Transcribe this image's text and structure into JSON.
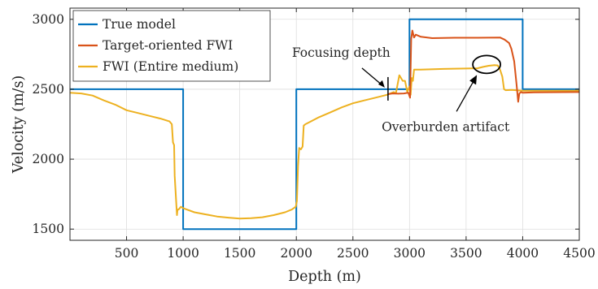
{
  "chart_data": {
    "type": "line",
    "xlabel": "Depth (m)",
    "ylabel": "Velocity (m/s)",
    "xlim": [
      0,
      4500
    ],
    "ylim": [
      1420,
      3080
    ],
    "grid": true,
    "legend_position": "top-left",
    "x_ticks": [
      500,
      1000,
      1500,
      2000,
      2500,
      3000,
      3500,
      4000,
      4500
    ],
    "y_ticks": [
      1500,
      2000,
      2500,
      3000
    ],
    "series": [
      {
        "name": "True model",
        "color": "#0072BD",
        "points": [
          [
            0,
            2500
          ],
          [
            1000,
            2500
          ],
          [
            1000,
            1500
          ],
          [
            2000,
            1500
          ],
          [
            2000,
            2500
          ],
          [
            3000,
            2500
          ],
          [
            3000,
            3000
          ],
          [
            4000,
            3000
          ],
          [
            4000,
            2500
          ],
          [
            4500,
            2500
          ]
        ]
      },
      {
        "name": "Target-oriented FWI",
        "color": "#D95319",
        "points": [
          [
            2810,
            2465
          ],
          [
            2850,
            2470
          ],
          [
            2900,
            2468
          ],
          [
            2950,
            2470
          ],
          [
            2990,
            2475
          ],
          [
            3005,
            2440
          ],
          [
            3015,
            2860
          ],
          [
            3025,
            2920
          ],
          [
            3040,
            2870
          ],
          [
            3055,
            2890
          ],
          [
            3100,
            2875
          ],
          [
            3200,
            2865
          ],
          [
            3400,
            2868
          ],
          [
            3600,
            2868
          ],
          [
            3800,
            2870
          ],
          [
            3840,
            2855
          ],
          [
            3880,
            2830
          ],
          [
            3900,
            2790
          ],
          [
            3925,
            2700
          ],
          [
            3945,
            2540
          ],
          [
            3960,
            2410
          ],
          [
            3970,
            2470
          ],
          [
            3985,
            2480
          ],
          [
            4000,
            2475
          ],
          [
            4100,
            2478
          ],
          [
            4500,
            2480
          ]
        ]
      },
      {
        "name": "FWI (Entire medium)",
        "color": "#EDB120",
        "points": [
          [
            0,
            2475
          ],
          [
            100,
            2470
          ],
          [
            200,
            2455
          ],
          [
            300,
            2420
          ],
          [
            400,
            2390
          ],
          [
            500,
            2350
          ],
          [
            600,
            2330
          ],
          [
            700,
            2310
          ],
          [
            800,
            2290
          ],
          [
            880,
            2270
          ],
          [
            900,
            2250
          ],
          [
            910,
            2120
          ],
          [
            920,
            2100
          ],
          [
            925,
            1880
          ],
          [
            940,
            1670
          ],
          [
            945,
            1600
          ],
          [
            950,
            1640
          ],
          [
            960,
            1640
          ],
          [
            980,
            1660
          ],
          [
            1000,
            1650
          ],
          [
            1100,
            1620
          ],
          [
            1200,
            1605
          ],
          [
            1300,
            1590
          ],
          [
            1400,
            1582
          ],
          [
            1500,
            1575
          ],
          [
            1600,
            1578
          ],
          [
            1700,
            1585
          ],
          [
            1800,
            1600
          ],
          [
            1900,
            1620
          ],
          [
            1960,
            1640
          ],
          [
            1995,
            1660
          ],
          [
            2005,
            1700
          ],
          [
            2015,
            1950
          ],
          [
            2025,
            2080
          ],
          [
            2040,
            2070
          ],
          [
            2055,
            2090
          ],
          [
            2065,
            2240
          ],
          [
            2080,
            2250
          ],
          [
            2200,
            2300
          ],
          [
            2300,
            2335
          ],
          [
            2400,
            2370
          ],
          [
            2500,
            2400
          ],
          [
            2600,
            2420
          ],
          [
            2700,
            2440
          ],
          [
            2800,
            2460
          ],
          [
            2860,
            2480
          ],
          [
            2880,
            2470
          ],
          [
            2910,
            2600
          ],
          [
            2940,
            2560
          ],
          [
            2960,
            2560
          ],
          [
            2980,
            2480
          ],
          [
            3000,
            2520
          ],
          [
            3010,
            2460
          ],
          [
            3020,
            2580
          ],
          [
            3030,
            2560
          ],
          [
            3040,
            2640
          ],
          [
            3100,
            2640
          ],
          [
            3300,
            2645
          ],
          [
            3500,
            2648
          ],
          [
            3600,
            2650
          ],
          [
            3650,
            2660
          ],
          [
            3700,
            2668
          ],
          [
            3750,
            2672
          ],
          [
            3780,
            2670
          ],
          [
            3800,
            2640
          ],
          [
            3820,
            2590
          ],
          [
            3835,
            2500
          ],
          [
            3850,
            2493
          ],
          [
            3900,
            2495
          ],
          [
            4000,
            2490
          ],
          [
            4500,
            2490
          ]
        ]
      }
    ],
    "annotations": [
      {
        "text": "Focusing depth",
        "target_depth": 2810,
        "target_velocity": 2500
      },
      {
        "text": "Overburden artifact",
        "target_depth": 3710,
        "target_velocity": 2660
      }
    ]
  }
}
